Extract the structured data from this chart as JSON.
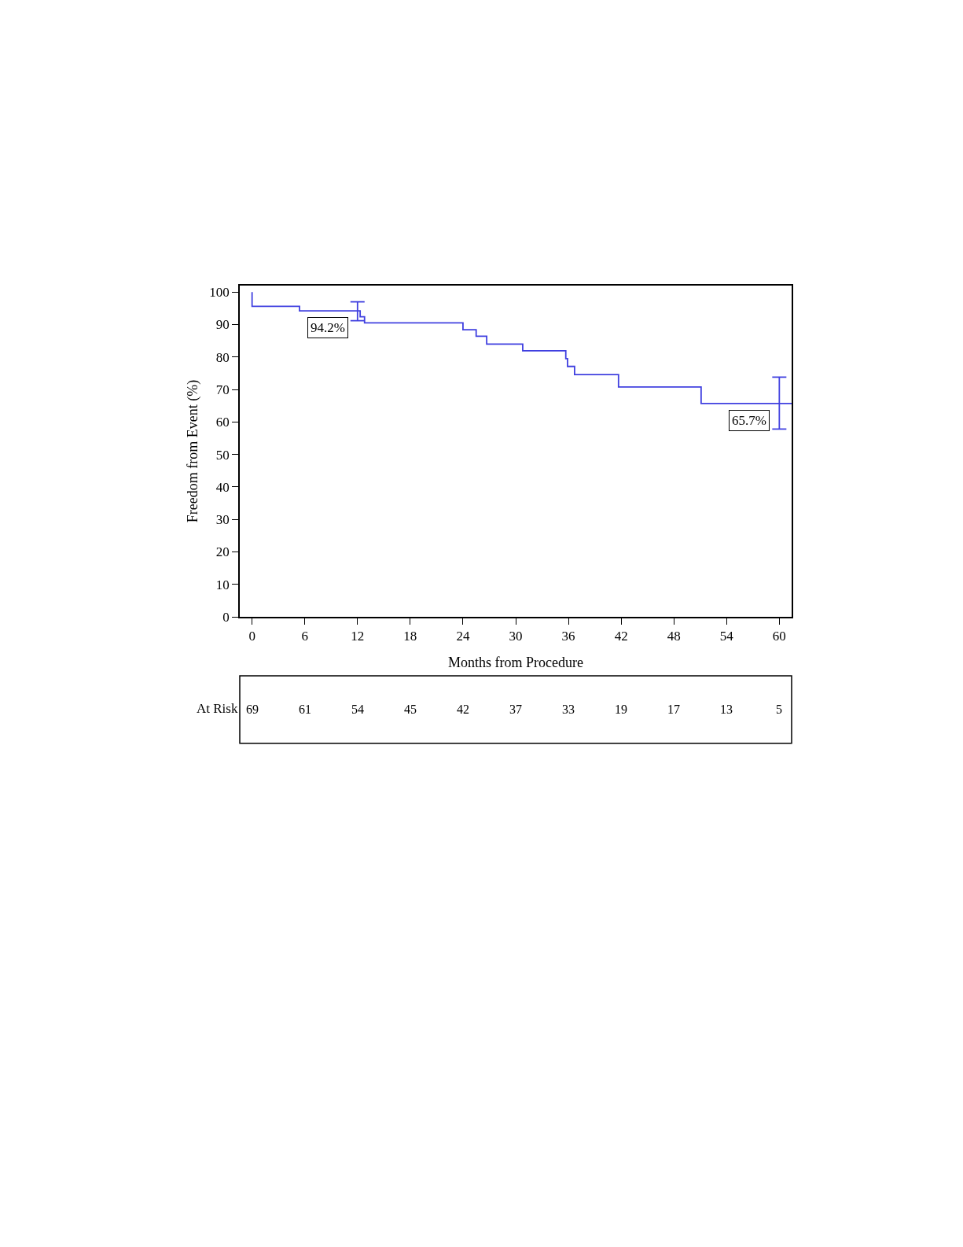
{
  "chart_data": {
    "type": "step",
    "xlabel": "Months from Procedure",
    "ylabel": "Freedom from Event (%)",
    "series": [
      {
        "color": "#4040e0",
        "x": [
          0,
          0,
          5.4,
          12,
          12.3,
          12.8,
          24,
          25.5,
          26.7,
          30.8,
          35.7,
          35.9,
          36.7,
          41.7,
          51.1,
          60,
          61.4
        ],
        "values": [
          100,
          95.6,
          94.2,
          94.2,
          92.4,
          90.5,
          88.4,
          86.4,
          84.0,
          81.9,
          79.5,
          77.1,
          74.6,
          70.8,
          65.7,
          65.7,
          65.7
        ],
        "errors": [
          null,
          null,
          null,
          [
            91.2,
            97.0
          ],
          null,
          null,
          null,
          null,
          null,
          null,
          null,
          null,
          null,
          null,
          null,
          [
            57.8,
            73.8
          ],
          null
        ]
      }
    ],
    "xlim": [
      -1.4,
      61.4
    ],
    "xticks": [
      0,
      6,
      12,
      18,
      24,
      30,
      36,
      42,
      48,
      54,
      60
    ],
    "ylim": [
      0,
      102
    ],
    "yticks": [
      0,
      10,
      20,
      30,
      40,
      50,
      60,
      70,
      80,
      90,
      100
    ],
    "marker": "none",
    "line_style": "solid",
    "annotations": [
      {
        "text": "94.2%",
        "x": 12,
        "y": 94.2
      },
      {
        "text": "65.7%",
        "x": 60,
        "y": 65.7
      },
      "At Risk",
      "69",
      "61",
      "54",
      "45",
      "42",
      "37",
      "33",
      "19",
      "17",
      "13",
      "5"
    ]
  }
}
